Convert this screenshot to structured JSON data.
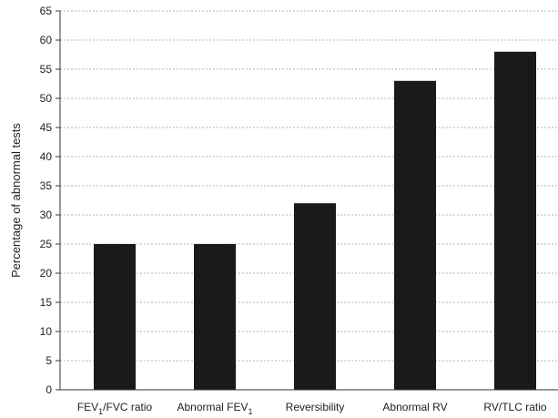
{
  "chart_data": {
    "type": "bar",
    "categories": [
      {
        "main": "FEV",
        "sub": "1",
        "rest": "/FVC ratio"
      },
      {
        "main": "Abnormal FEV",
        "sub": "1",
        "rest": ""
      },
      {
        "main": "Reversibility",
        "sub": "",
        "rest": ""
      },
      {
        "main": "Abnormal RV",
        "sub": "",
        "rest": ""
      },
      {
        "main": "RV/TLC ratio",
        "sub": "",
        "rest": ""
      }
    ],
    "values": [
      25,
      25,
      32,
      53,
      58
    ],
    "ylabel": "Percentage of abnormal tests",
    "xlabel": "",
    "title": "",
    "ylim": [
      0,
      65
    ],
    "yticks": [
      0,
      5,
      10,
      15,
      20,
      25,
      30,
      35,
      40,
      45,
      50,
      55,
      60,
      65
    ],
    "grid": true,
    "colors": {
      "bar": "#1a1a1a",
      "grid": "#9a9a9a",
      "text": "#222222"
    }
  }
}
